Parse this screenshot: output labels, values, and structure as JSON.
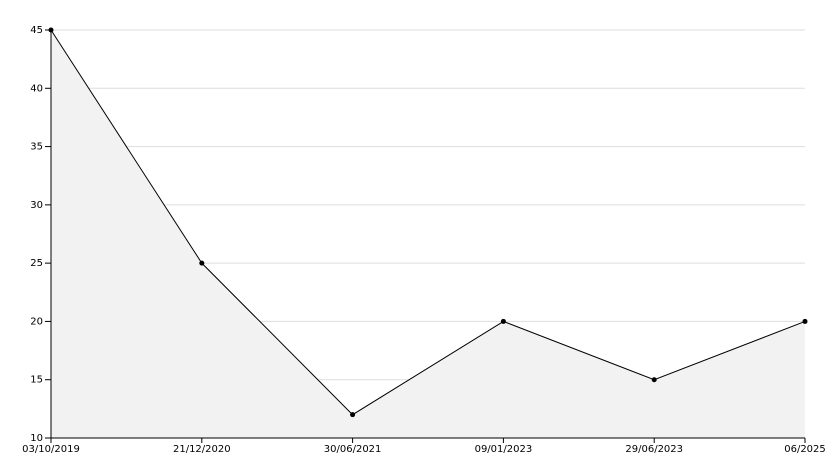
{
  "chart_data": {
    "type": "area",
    "categories": [
      "03/10/2019",
      "21/12/2020",
      "30/06/2021",
      "09/01/2023",
      "29/06/2023",
      "06/2025"
    ],
    "values": [
      45,
      25,
      12,
      20,
      15,
      20
    ],
    "color": "#000000",
    "fill": "#f2f2f2",
    "ylim": [
      10,
      45
    ],
    "yticks": [
      10,
      15,
      20,
      25,
      30,
      35,
      40,
      45
    ],
    "grid": true
  }
}
